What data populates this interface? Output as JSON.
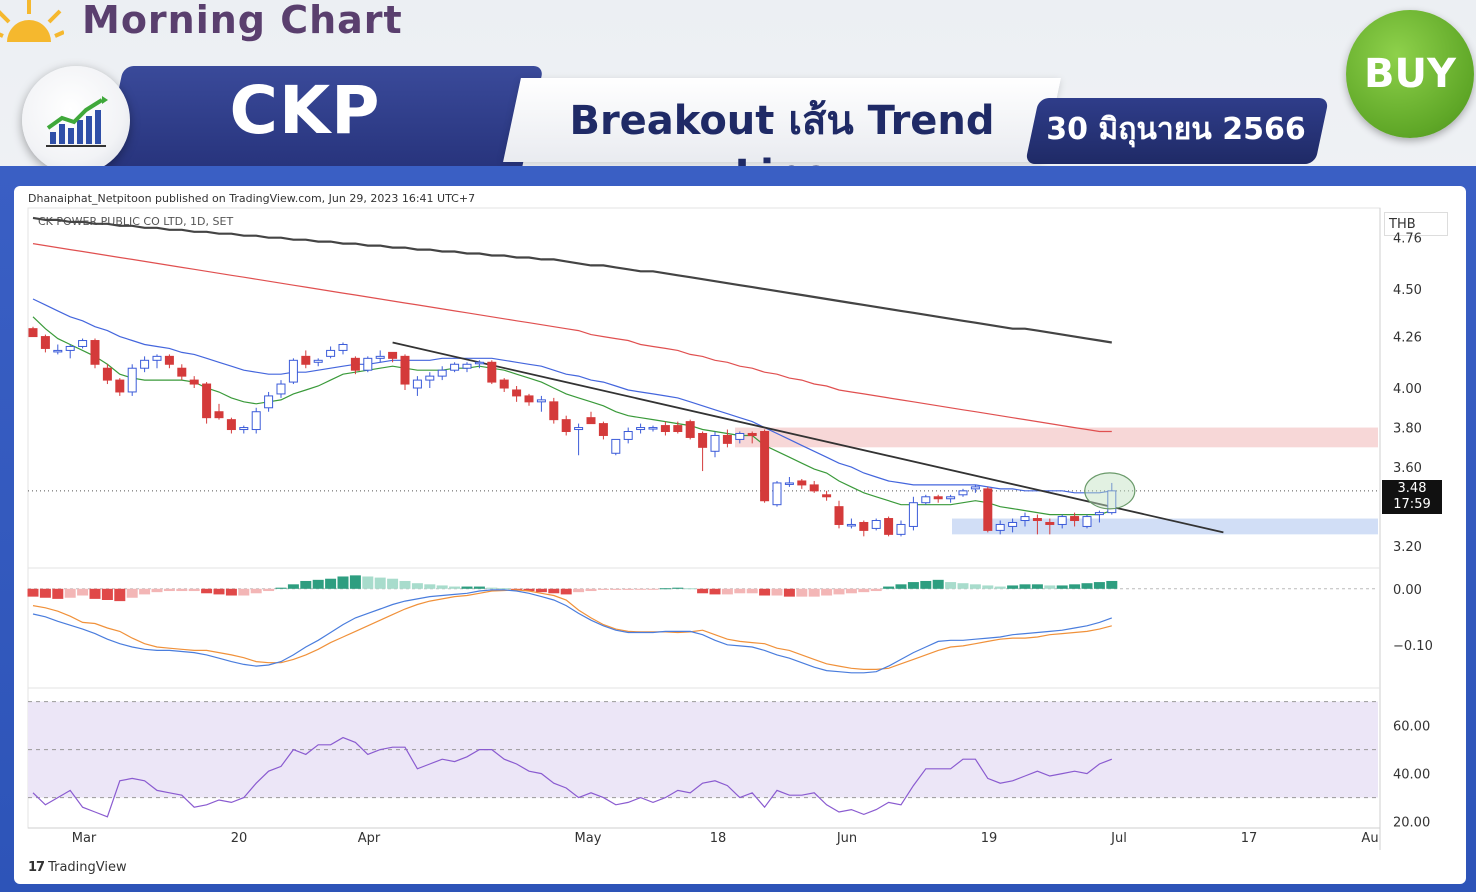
{
  "header": {
    "brand": "Morning Chart",
    "ticker": "CKP",
    "title": "Breakout เส้น Trend Line",
    "date": "30 มิถุนายน 2566",
    "signal": "BUY"
  },
  "chart_header": {
    "published": "Dhanaiphat_Netpitoon published on TradingView.com, Jun 29, 2023 16:41 UTC+7",
    "symbol": "CK POWER PUBLIC CO LTD, 1D, SET",
    "currency": "THB",
    "footer": "TradingView"
  },
  "last_price": {
    "value": "3.48",
    "countdown": "17:59"
  },
  "colors": {
    "up": "#3b5bd9",
    "down": "#d43a3a",
    "ema_fast": "#3a9a3a",
    "ema_mid": "#4466dd",
    "ema_slow": "#e05050",
    "ema_long": "#444444",
    "resistance_zone": "#f4c6c6",
    "support_zone": "#c6d6f4",
    "macd_line": "#4a7ddd",
    "signal_line": "#f0913a",
    "hist_pos": "#2e9e80",
    "hist_pos_fade": "#a8dccc",
    "hist_neg": "#e04848",
    "hist_neg_fade": "#f3b6b6",
    "rsi_line": "#8a5bd0",
    "rsi_band": "#ece6f7"
  },
  "chart_data": [
    {
      "type": "candlestick",
      "title": "CK POWER PUBLIC CO LTD, 1D, SET",
      "ylabel": "THB",
      "ylim": [
        3.1,
        4.9
      ],
      "yticks": [
        "4.76",
        "4.50",
        "4.26",
        "4.00",
        "3.80",
        "3.60",
        "3.20"
      ],
      "xticks": [
        "Mar",
        "20",
        "Apr",
        "May",
        "18",
        "Jun",
        "19",
        "Jul",
        "17",
        "Au"
      ],
      "candles": [
        [
          4.3,
          4.31,
          4.26,
          4.26
        ],
        [
          4.26,
          4.27,
          4.18,
          4.2
        ],
        [
          4.19,
          4.22,
          4.17,
          4.19
        ],
        [
          4.19,
          4.22,
          4.15,
          4.21
        ],
        [
          4.21,
          4.25,
          4.2,
          4.24
        ],
        [
          4.24,
          4.25,
          4.1,
          4.12
        ],
        [
          4.1,
          4.12,
          4.02,
          4.04
        ],
        [
          4.04,
          4.05,
          3.96,
          3.98
        ],
        [
          3.98,
          4.12,
          3.96,
          4.1
        ],
        [
          4.1,
          4.16,
          4.08,
          4.14
        ],
        [
          4.14,
          4.17,
          4.1,
          4.16
        ],
        [
          4.16,
          4.17,
          4.1,
          4.12
        ],
        [
          4.1,
          4.12,
          4.04,
          4.06
        ],
        [
          4.04,
          4.06,
          4.0,
          4.02
        ],
        [
          4.02,
          4.03,
          3.82,
          3.85
        ],
        [
          3.88,
          3.92,
          3.84,
          3.85
        ],
        [
          3.84,
          3.85,
          3.77,
          3.79
        ],
        [
          3.79,
          3.81,
          3.77,
          3.8
        ],
        [
          3.79,
          3.9,
          3.77,
          3.88
        ],
        [
          3.9,
          3.98,
          3.88,
          3.96
        ],
        [
          3.97,
          4.04,
          3.95,
          4.02
        ],
        [
          4.03,
          4.15,
          4.02,
          4.14
        ],
        [
          4.16,
          4.19,
          4.1,
          4.12
        ],
        [
          4.13,
          4.15,
          4.11,
          4.14
        ],
        [
          4.16,
          4.21,
          4.15,
          4.19
        ],
        [
          4.19,
          4.23,
          4.17,
          4.22
        ],
        [
          4.15,
          4.16,
          4.07,
          4.09
        ],
        [
          4.09,
          4.16,
          4.08,
          4.15
        ],
        [
          4.15,
          4.19,
          4.13,
          4.16
        ],
        [
          4.18,
          4.18,
          4.13,
          4.15
        ],
        [
          4.16,
          4.17,
          3.99,
          4.02
        ],
        [
          4.0,
          4.06,
          3.96,
          4.04
        ],
        [
          4.04,
          4.08,
          4.0,
          4.06
        ],
        [
          4.06,
          4.11,
          4.04,
          4.09
        ],
        [
          4.09,
          4.13,
          4.08,
          4.12
        ],
        [
          4.1,
          4.13,
          4.08,
          4.12
        ],
        [
          4.13,
          4.14,
          4.1,
          4.13
        ],
        [
          4.13,
          4.14,
          4.02,
          4.03
        ],
        [
          4.04,
          4.05,
          3.98,
          4.0
        ],
        [
          3.99,
          4.01,
          3.93,
          3.96
        ],
        [
          3.96,
          3.97,
          3.91,
          3.93
        ],
        [
          3.93,
          3.96,
          3.88,
          3.94
        ],
        [
          3.93,
          3.95,
          3.82,
          3.84
        ],
        [
          3.84,
          3.86,
          3.76,
          3.78
        ],
        [
          3.79,
          3.82,
          3.66,
          3.8
        ],
        [
          3.85,
          3.88,
          3.82,
          3.82
        ],
        [
          3.82,
          3.83,
          3.74,
          3.76
        ],
        [
          3.67,
          3.74,
          3.66,
          3.74
        ],
        [
          3.74,
          3.8,
          3.72,
          3.78
        ],
        [
          3.79,
          3.82,
          3.77,
          3.8
        ],
        [
          3.8,
          3.81,
          3.78,
          3.8
        ],
        [
          3.81,
          3.83,
          3.76,
          3.78
        ],
        [
          3.81,
          3.83,
          3.77,
          3.78
        ],
        [
          3.83,
          3.84,
          3.74,
          3.75
        ],
        [
          3.77,
          3.78,
          3.58,
          3.7
        ],
        [
          3.68,
          3.78,
          3.65,
          3.76
        ],
        [
          3.76,
          3.79,
          3.7,
          3.72
        ],
        [
          3.74,
          3.78,
          3.72,
          3.77
        ],
        [
          3.77,
          3.78,
          3.72,
          3.76
        ],
        [
          3.78,
          3.79,
          3.42,
          3.43
        ],
        [
          3.41,
          3.53,
          3.4,
          3.52
        ],
        [
          3.52,
          3.55,
          3.5,
          3.52
        ],
        [
          3.53,
          3.54,
          3.49,
          3.51
        ],
        [
          3.51,
          3.53,
          3.47,
          3.48
        ],
        [
          3.46,
          3.48,
          3.43,
          3.45
        ],
        [
          3.4,
          3.43,
          3.29,
          3.31
        ],
        [
          3.31,
          3.34,
          3.29,
          3.31
        ],
        [
          3.32,
          3.33,
          3.25,
          3.28
        ],
        [
          3.29,
          3.34,
          3.28,
          3.33
        ],
        [
          3.34,
          3.35,
          3.25,
          3.26
        ],
        [
          3.26,
          3.33,
          3.25,
          3.31
        ],
        [
          3.3,
          3.45,
          3.28,
          3.42
        ],
        [
          3.42,
          3.46,
          3.41,
          3.45
        ],
        [
          3.45,
          3.46,
          3.42,
          3.44
        ],
        [
          3.44,
          3.46,
          3.42,
          3.45
        ],
        [
          3.46,
          3.49,
          3.45,
          3.48
        ],
        [
          3.49,
          3.51,
          3.47,
          3.5
        ],
        [
          3.49,
          3.5,
          3.27,
          3.28
        ],
        [
          3.28,
          3.33,
          3.26,
          3.31
        ],
        [
          3.3,
          3.34,
          3.27,
          3.32
        ],
        [
          3.33,
          3.37,
          3.3,
          3.35
        ],
        [
          3.34,
          3.36,
          3.26,
          3.33
        ],
        [
          3.32,
          3.34,
          3.26,
          3.31
        ],
        [
          3.31,
          3.36,
          3.29,
          3.35
        ],
        [
          3.35,
          3.37,
          3.3,
          3.33
        ],
        [
          3.3,
          3.36,
          3.29,
          3.35
        ],
        [
          3.36,
          3.38,
          3.32,
          3.37
        ],
        [
          3.37,
          3.52,
          3.36,
          3.48
        ]
      ],
      "ema_fast": [
        4.36,
        4.3,
        4.25,
        4.22,
        4.19,
        4.16,
        4.12,
        4.07,
        4.05,
        4.04,
        4.04,
        4.04,
        4.04,
        4.03,
        4.0,
        3.98,
        3.95,
        3.93,
        3.92,
        3.93,
        3.94,
        3.97,
        3.99,
        4.01,
        4.04,
        4.07,
        4.08,
        4.09,
        4.1,
        4.11,
        4.1,
        4.09,
        4.09,
        4.09,
        4.1,
        4.1,
        4.11,
        4.1,
        4.09,
        4.07,
        4.05,
        4.03,
        4.0,
        3.97,
        3.95,
        3.93,
        3.91,
        3.88,
        3.86,
        3.85,
        3.84,
        3.83,
        3.82,
        3.81,
        3.79,
        3.78,
        3.77,
        3.76,
        3.76,
        3.71,
        3.68,
        3.65,
        3.62,
        3.59,
        3.57,
        3.53,
        3.5,
        3.47,
        3.45,
        3.43,
        3.41,
        3.41,
        3.41,
        3.41,
        3.41,
        3.42,
        3.43,
        3.42,
        3.4,
        3.39,
        3.38,
        3.37,
        3.36,
        3.36,
        3.36,
        3.36,
        3.36,
        3.38
      ],
      "ema_mid": [
        4.45,
        4.42,
        4.39,
        4.36,
        4.34,
        4.31,
        4.29,
        4.26,
        4.24,
        4.22,
        4.21,
        4.2,
        4.18,
        4.17,
        4.15,
        4.13,
        4.11,
        4.09,
        4.08,
        4.07,
        4.07,
        4.08,
        4.08,
        4.09,
        4.1,
        4.11,
        4.12,
        4.12,
        4.13,
        4.14,
        4.14,
        4.14,
        4.14,
        4.15,
        4.15,
        4.15,
        4.15,
        4.15,
        4.14,
        4.13,
        4.12,
        4.11,
        4.09,
        4.07,
        4.06,
        4.04,
        4.03,
        4.01,
        3.99,
        3.98,
        3.97,
        3.96,
        3.95,
        3.93,
        3.91,
        3.89,
        3.87,
        3.85,
        3.83,
        3.8,
        3.77,
        3.74,
        3.71,
        3.68,
        3.65,
        3.62,
        3.6,
        3.57,
        3.55,
        3.53,
        3.52,
        3.51,
        3.51,
        3.51,
        3.51,
        3.51,
        3.51,
        3.5,
        3.49,
        3.49,
        3.48,
        3.48,
        3.48,
        3.48,
        3.47,
        3.47,
        3.47,
        3.48
      ],
      "ema_slow": [
        4.73,
        4.72,
        4.71,
        4.7,
        4.69,
        4.68,
        4.67,
        4.66,
        4.65,
        4.64,
        4.63,
        4.62,
        4.61,
        4.6,
        4.59,
        4.58,
        4.57,
        4.56,
        4.55,
        4.54,
        4.53,
        4.52,
        4.51,
        4.5,
        4.49,
        4.48,
        4.47,
        4.46,
        4.45,
        4.44,
        4.43,
        4.42,
        4.41,
        4.4,
        4.39,
        4.38,
        4.37,
        4.36,
        4.35,
        4.34,
        4.33,
        4.32,
        4.31,
        4.3,
        4.29,
        4.27,
        4.26,
        4.25,
        4.24,
        4.22,
        4.21,
        4.2,
        4.19,
        4.17,
        4.16,
        4.14,
        4.13,
        4.11,
        4.1,
        4.08,
        4.07,
        4.05,
        4.04,
        4.02,
        4.01,
        3.99,
        3.98,
        3.97,
        3.96,
        3.95,
        3.94,
        3.93,
        3.92,
        3.91,
        3.9,
        3.89,
        3.88,
        3.87,
        3.86,
        3.85,
        3.84,
        3.83,
        3.82,
        3.81,
        3.8,
        3.79,
        3.78,
        3.78
      ],
      "ema_long": [
        4.86,
        4.85,
        4.85,
        4.84,
        4.84,
        4.83,
        4.83,
        4.82,
        4.82,
        4.81,
        4.81,
        4.8,
        4.8,
        4.79,
        4.79,
        4.78,
        4.78,
        4.77,
        4.77,
        4.76,
        4.76,
        4.75,
        4.75,
        4.74,
        4.74,
        4.73,
        4.73,
        4.72,
        4.72,
        4.71,
        4.71,
        4.7,
        4.7,
        4.69,
        4.69,
        4.68,
        4.68,
        4.67,
        4.67,
        4.66,
        4.66,
        4.65,
        4.65,
        4.64,
        4.63,
        4.62,
        4.62,
        4.61,
        4.6,
        4.59,
        4.59,
        4.58,
        4.57,
        4.56,
        4.55,
        4.54,
        4.53,
        4.52,
        4.51,
        4.5,
        4.49,
        4.48,
        4.47,
        4.46,
        4.45,
        4.44,
        4.43,
        4.42,
        4.41,
        4.4,
        4.39,
        4.38,
        4.37,
        4.36,
        4.35,
        4.34,
        4.33,
        4.32,
        4.31,
        4.3,
        4.3,
        4.29,
        4.28,
        4.27,
        4.26,
        4.25,
        4.24,
        4.23
      ],
      "trendline": {
        "start_bar": 29,
        "start_value": 4.23,
        "end_bar": 96,
        "end_value": 3.27
      },
      "resistance_zone": [
        3.7,
        3.8
      ],
      "support_zone": [
        3.26,
        3.34
      ],
      "last_price": 3.48
    },
    {
      "type": "macd",
      "yticks": [
        "0.00",
        "−0.10"
      ],
      "ylim": [
        -0.17,
        0.03
      ],
      "histogram": [
        -0.014,
        -0.016,
        -0.018,
        -0.016,
        -0.012,
        -0.018,
        -0.02,
        -0.022,
        -0.016,
        -0.01,
        -0.006,
        -0.004,
        -0.004,
        -0.004,
        -0.008,
        -0.01,
        -0.012,
        -0.012,
        -0.008,
        -0.004,
        0.002,
        0.008,
        0.014,
        0.016,
        0.018,
        0.022,
        0.024,
        0.022,
        0.02,
        0.018,
        0.014,
        0.01,
        0.008,
        0.006,
        0.004,
        0.004,
        0.004,
        0.002,
        0.001,
        -0.002,
        -0.004,
        -0.006,
        -0.008,
        -0.01,
        -0.006,
        -0.004,
        -0.002,
        -0.002,
        -0.002,
        -0.001,
        -0.001,
        0.001,
        0.002,
        0.001,
        -0.008,
        -0.01,
        -0.01,
        -0.008,
        -0.008,
        -0.012,
        -0.012,
        -0.014,
        -0.014,
        -0.014,
        -0.012,
        -0.01,
        -0.008,
        -0.006,
        -0.004,
        0.004,
        0.008,
        0.012,
        0.014,
        0.016,
        0.012,
        0.01,
        0.008,
        0.006,
        0.004,
        0.006,
        0.008,
        0.008,
        0.006,
        0.006,
        0.008,
        0.01,
        0.012,
        0.014
      ],
      "macd": [
        -0.045,
        -0.05,
        -0.058,
        -0.065,
        -0.072,
        -0.08,
        -0.09,
        -0.098,
        -0.104,
        -0.108,
        -0.11,
        -0.11,
        -0.112,
        -0.114,
        -0.118,
        -0.124,
        -0.13,
        -0.135,
        -0.138,
        -0.136,
        -0.13,
        -0.118,
        -0.104,
        -0.092,
        -0.078,
        -0.064,
        -0.052,
        -0.044,
        -0.036,
        -0.028,
        -0.022,
        -0.018,
        -0.014,
        -0.012,
        -0.01,
        -0.008,
        -0.004,
        -0.002,
        -0.002,
        -0.004,
        -0.008,
        -0.014,
        -0.02,
        -0.03,
        -0.044,
        -0.056,
        -0.066,
        -0.074,
        -0.078,
        -0.078,
        -0.078,
        -0.076,
        -0.076,
        -0.076,
        -0.082,
        -0.092,
        -0.1,
        -0.102,
        -0.104,
        -0.11,
        -0.118,
        -0.124,
        -0.132,
        -0.14,
        -0.146,
        -0.148,
        -0.15,
        -0.15,
        -0.148,
        -0.138,
        -0.126,
        -0.114,
        -0.104,
        -0.094,
        -0.092,
        -0.092,
        -0.09,
        -0.088,
        -0.086,
        -0.082,
        -0.08,
        -0.078,
        -0.076,
        -0.074,
        -0.07,
        -0.066,
        -0.06,
        -0.052
      ],
      "signal": [
        -0.03,
        -0.034,
        -0.04,
        -0.049,
        -0.06,
        -0.062,
        -0.07,
        -0.076,
        -0.088,
        -0.098,
        -0.104,
        -0.106,
        -0.108,
        -0.11,
        -0.11,
        -0.114,
        -0.118,
        -0.123,
        -0.13,
        -0.132,
        -0.132,
        -0.126,
        -0.118,
        -0.108,
        -0.096,
        -0.086,
        -0.076,
        -0.066,
        -0.056,
        -0.046,
        -0.036,
        -0.028,
        -0.022,
        -0.018,
        -0.014,
        -0.012,
        -0.008,
        -0.004,
        -0.003,
        -0.002,
        -0.004,
        -0.008,
        -0.012,
        -0.02,
        -0.038,
        -0.052,
        -0.064,
        -0.072,
        -0.076,
        -0.077,
        -0.077,
        -0.077,
        -0.078,
        -0.077,
        -0.074,
        -0.082,
        -0.09,
        -0.094,
        -0.096,
        -0.098,
        -0.106,
        -0.11,
        -0.118,
        -0.126,
        -0.134,
        -0.138,
        -0.142,
        -0.144,
        -0.144,
        -0.142,
        -0.134,
        -0.126,
        -0.118,
        -0.11,
        -0.104,
        -0.102,
        -0.098,
        -0.094,
        -0.09,
        -0.088,
        -0.088,
        -0.086,
        -0.082,
        -0.08,
        -0.078,
        -0.076,
        -0.072,
        -0.066
      ]
    },
    {
      "type": "rsi",
      "yticks": [
        "60.00",
        "40.00",
        "20.00"
      ],
      "ylim": [
        19,
        74
      ],
      "band": [
        30,
        70
      ],
      "midline": 50,
      "values": [
        32,
        27,
        30,
        33,
        26,
        24,
        22,
        37,
        38,
        37,
        33,
        32,
        31,
        26,
        27,
        29,
        28,
        30,
        36,
        41,
        43,
        50,
        48,
        52,
        52,
        55,
        53,
        48,
        50,
        51,
        51,
        42,
        44,
        46,
        45,
        47,
        50,
        50,
        46,
        44,
        41,
        40,
        36,
        34,
        30,
        32,
        30,
        27,
        28,
        30,
        28,
        30,
        33,
        32,
        36,
        37,
        35,
        30,
        32,
        26,
        33,
        31,
        31,
        32,
        27,
        24,
        25,
        23,
        25,
        28,
        27,
        35,
        42,
        42,
        42,
        46,
        46,
        38,
        36,
        37,
        39,
        41,
        39,
        40,
        41,
        40,
        44,
        46
      ]
    }
  ]
}
